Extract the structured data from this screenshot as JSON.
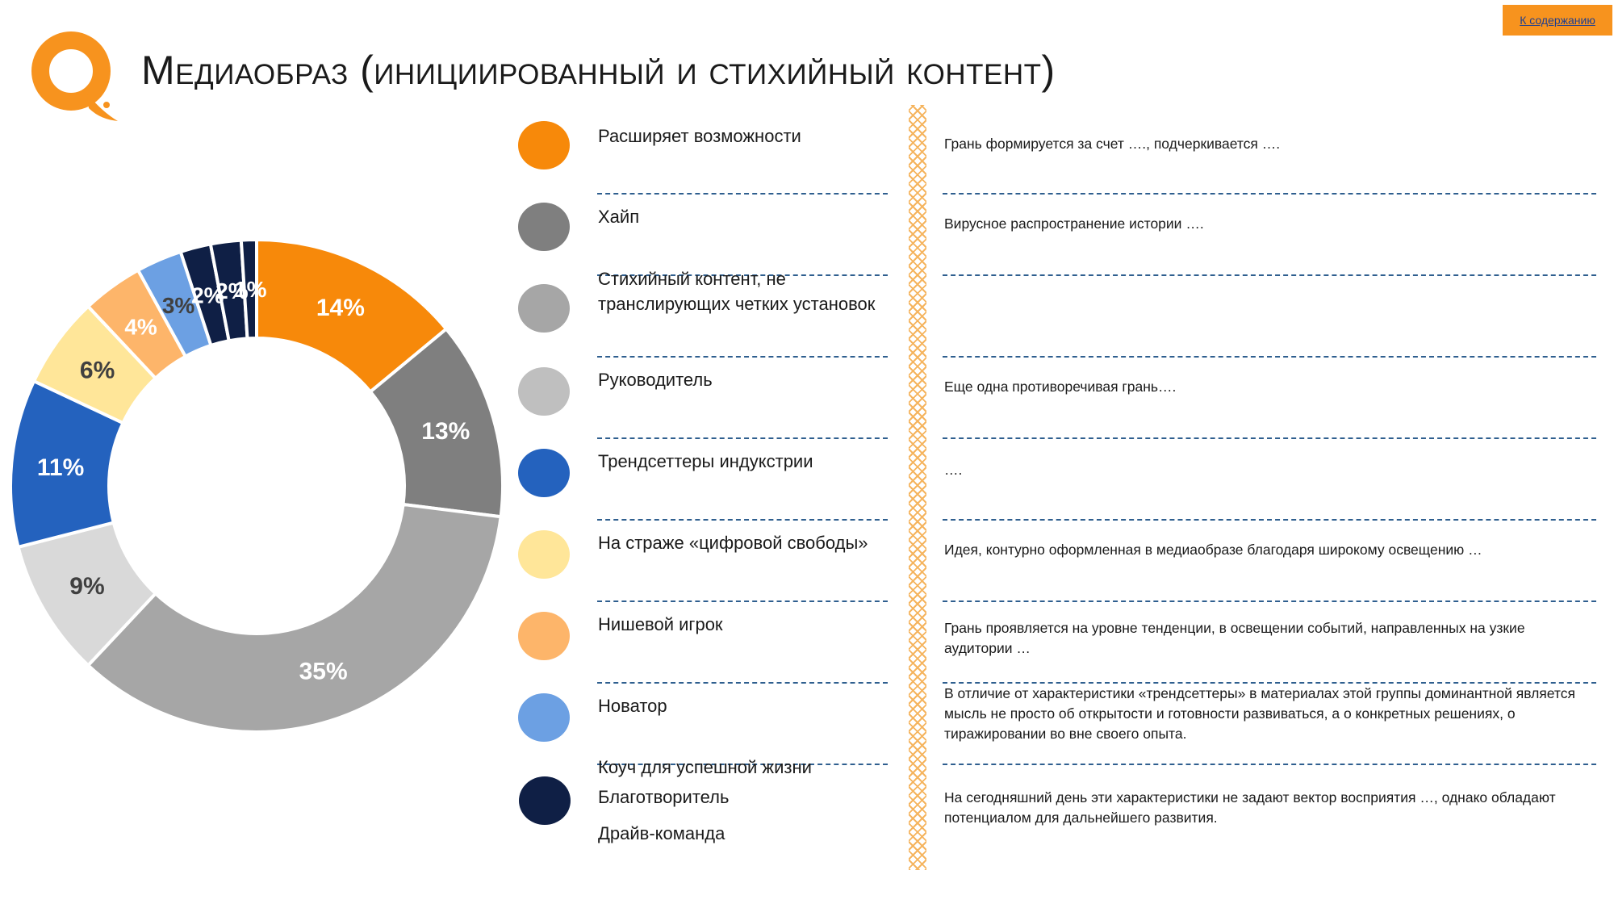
{
  "header": {
    "title": "Медиаобраз (инициированный и стихийный контент)",
    "toc_link": "К содержанию"
  },
  "colors": {
    "accent": "#F7931E",
    "dash": "#2F5F8F",
    "divider": "#F5B45E"
  },
  "chart_data": {
    "type": "pie",
    "donut": true,
    "title": "",
    "categories": [
      "Расширяет возможности",
      "Хайп",
      "Стихийный контент, не транслирующих четких установок",
      "Руководитель",
      "Трендсеттеры индукстрии",
      "На страже «цифровой свободы»",
      "Нишевой игрок",
      "Новатор",
      "Коуч для успешной жизни",
      "Благотворитель",
      "Драйв-команда"
    ],
    "values": [
      14,
      13,
      35,
      9,
      11,
      6,
      4,
      3,
      2,
      2,
      1
    ],
    "data_labels": [
      "14%",
      "13%",
      "35%",
      "9%",
      "11%",
      "6%",
      "4%",
      "3%",
      "2%",
      "2%",
      "1%"
    ],
    "colors": [
      "#F7890A",
      "#7F7F7F",
      "#A6A6A6",
      "#D9D9D9",
      "#2462BE",
      "#FFE699",
      "#FDB56A",
      "#6CA0E3",
      "#0F1F45",
      "#0F1F45",
      "#0F1F45"
    ],
    "label_colors": [
      "#ffffff",
      "#ffffff",
      "#ffffff",
      "#404040",
      "#ffffff",
      "#404040",
      "#ffffff",
      "#404040",
      "#ffffff",
      "#ffffff",
      "#ffffff"
    ]
  },
  "legend": [
    {
      "label": "Расширяет возможности",
      "color": "#F7890A",
      "description": "Грань формируется за счет …., подчеркивается …."
    },
    {
      "label": "Хайп",
      "color": "#7F7F7F",
      "description": "Вирусное распространение истории …."
    },
    {
      "label": "Стихийный контент, не транслирующих четких установок",
      "color": "#A6A6A6",
      "description": ""
    },
    {
      "label": "Руководитель",
      "color": "#BFBFBF",
      "description": "Еще одна противоречивая грань…."
    },
    {
      "label": "Трендсеттеры индукстрии",
      "color": "#2462BE",
      "description": "…."
    },
    {
      "label": "На страже  «цифровой свободы»",
      "color": "#FFE699",
      "description": "Идея, контурно оформленная в медиаобразе благодаря широкому освещению …"
    },
    {
      "label": "Нишевой игрок",
      "color": "#FDB56A",
      "description": "Грань проявляется на уровне тенденции, в освещении событий, направленных на узкие аудитории …"
    },
    {
      "label": "Новатор",
      "color": "#6CA0E3",
      "description": "В отличие от характеристики «трендсеттеры» в материалах этой группы доминантной является мысль не просто об открытости и готовности развиваться, а о конкретных решениях, о тиражировании во вне своего опыта."
    }
  ],
  "legend_last": {
    "color": "#0F1F45",
    "labels": [
      "Коуч для успешной жизни",
      "Благотворитель",
      "Драйв-команда"
    ],
    "description": "На сегодняшний день эти характеристики не задают вектор восприятия …, однако обладают потенциалом для дальнейшего развития."
  }
}
